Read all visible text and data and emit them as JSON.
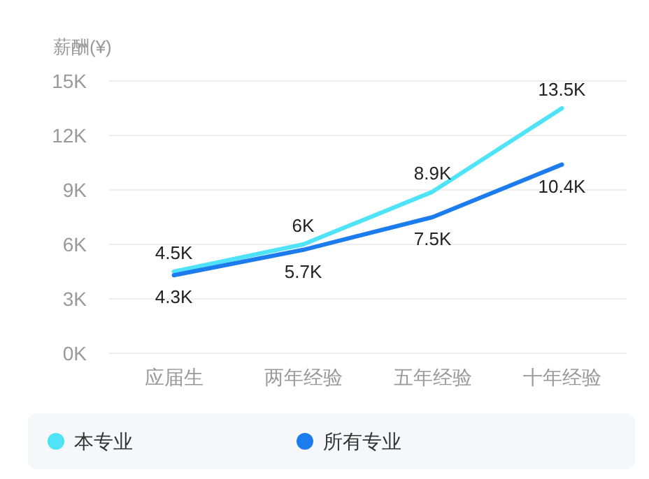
{
  "chart_data": {
    "type": "line",
    "ylabel": "薪酬(¥)",
    "categories": [
      "应届生",
      "两年经验",
      "五年经验",
      "十年经验"
    ],
    "series": [
      {
        "name": "本专业",
        "color": "#4fe3f7",
        "values": [
          4.5,
          6,
          8.9,
          13.5
        ],
        "value_labels": [
          "4.5K",
          "6K",
          "8.9K",
          "13.5K"
        ]
      },
      {
        "name": "所有专业",
        "color": "#1c7ced",
        "values": [
          4.3,
          5.7,
          7.5,
          10.4
        ],
        "value_labels": [
          "4.3K",
          "5.7K",
          "7.5K",
          "10.4K"
        ]
      }
    ],
    "ylim": [
      0,
      15
    ],
    "yticks": [
      {
        "value": 0,
        "label": "0K"
      },
      {
        "value": 3,
        "label": "3K"
      },
      {
        "value": 6,
        "label": "6K"
      },
      {
        "value": 9,
        "label": "9K"
      },
      {
        "value": 12,
        "label": "12K"
      },
      {
        "value": 15,
        "label": "15K"
      }
    ],
    "grid": "y",
    "legend": "bottom"
  }
}
